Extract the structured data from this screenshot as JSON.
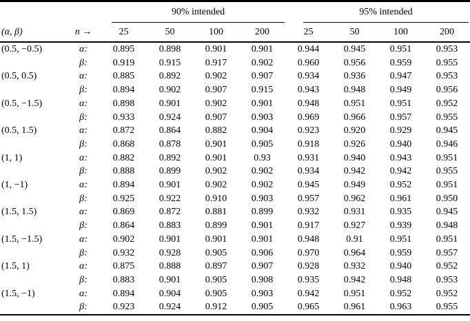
{
  "colors": {
    "text": "#000000",
    "background": "#ffffff",
    "rule": "#000000"
  },
  "table": {
    "groups": [
      {
        "label": "90% intended",
        "columns": [
          "25",
          "50",
          "100",
          "200"
        ]
      },
      {
        "label": "95% intended",
        "columns": [
          "25",
          "50",
          "100",
          "200"
        ]
      }
    ],
    "header": {
      "pair": "(α, β)",
      "n": "n →"
    },
    "row_labels": {
      "alpha": "α:",
      "beta": "β:"
    },
    "rows": [
      {
        "pair": "(0.5, −0.5)",
        "alpha": [
          "0.895",
          "0.898",
          "0.901",
          "0.901",
          "0.944",
          "0.945",
          "0.951",
          "0.953"
        ],
        "beta": [
          "0.919",
          "0.915",
          "0.917",
          "0.902",
          "0.960",
          "0.956",
          "0.959",
          "0.955"
        ]
      },
      {
        "pair": "(0.5, 0.5)",
        "alpha": [
          "0.885",
          "0.892",
          "0.902",
          "0.907",
          "0.934",
          "0.936",
          "0.947",
          "0.953"
        ],
        "beta": [
          "0.894",
          "0.902",
          "0.907",
          "0.915",
          "0.943",
          "0.948",
          "0.949",
          "0.956"
        ]
      },
      {
        "pair": "(0.5, −1.5)",
        "alpha": [
          "0.898",
          "0.901",
          "0.902",
          "0.901",
          "0.948",
          "0.951",
          "0.951",
          "0.952"
        ],
        "beta": [
          "0.933",
          "0.924",
          "0.907",
          "0.903",
          "0.969",
          "0.966",
          "0.957",
          "0.955"
        ]
      },
      {
        "pair": "(0.5, 1.5)",
        "alpha": [
          "0.872",
          "0.864",
          "0.882",
          "0.904",
          "0.923",
          "0.920",
          "0.929",
          "0.945"
        ],
        "beta": [
          "0.868",
          "0.878",
          "0.901",
          "0.905",
          "0.918",
          "0.926",
          "0.940",
          "0.946"
        ]
      },
      {
        "pair": "(1, 1)",
        "alpha": [
          "0.882",
          "0.892",
          "0.901",
          "0.93",
          "0.931",
          "0.940",
          "0.943",
          "0.951"
        ],
        "beta": [
          "0.888",
          "0.899",
          "0.902",
          "0.902",
          "0.934",
          "0.942",
          "0.942",
          "0.955"
        ]
      },
      {
        "pair": "(1, −1)",
        "alpha": [
          "0.894",
          "0.901",
          "0.902",
          "0.902",
          "0.945",
          "0.949",
          "0.952",
          "0.951"
        ],
        "beta": [
          "0.925",
          "0.922",
          "0.910",
          "0.903",
          "0.957",
          "0.962",
          "0.961",
          "0.950"
        ]
      },
      {
        "pair": "(1.5, 1.5)",
        "alpha": [
          "0.869",
          "0.872",
          "0.881",
          "0.899",
          "0.932",
          "0.931",
          "0.935",
          "0.945"
        ],
        "beta": [
          "0.864",
          "0.883",
          "0.899",
          "0.901",
          "0.917",
          "0.927",
          "0.939",
          "0.948"
        ]
      },
      {
        "pair": "(1.5, −1.5)",
        "alpha": [
          "0.902",
          "0.901",
          "0.901",
          "0.901",
          "0.948",
          "0.91",
          "0.951",
          "0.951"
        ],
        "beta": [
          "0.932",
          "0.928",
          "0.905",
          "0.906",
          "0.970",
          "0.964",
          "0.959",
          "0.957"
        ]
      },
      {
        "pair": "(1.5, 1)",
        "alpha": [
          "0.875",
          "0.888",
          "0.897",
          "0.907",
          "0.928",
          "0.932",
          "0.940",
          "0.952"
        ],
        "beta": [
          "0.883",
          "0.901",
          "0.905",
          "0.908",
          "0.935",
          "0.942",
          "0.948",
          "0.953"
        ]
      },
      {
        "pair": "(1.5, −1)",
        "alpha": [
          "0.894",
          "0.904",
          "0.905",
          "0.903",
          "0.942",
          "0.951",
          "0.952",
          "0.952"
        ],
        "beta": [
          "0.923",
          "0.924",
          "0.912",
          "0.905",
          "0.965",
          "0.961",
          "0.963",
          "0.955"
        ]
      }
    ]
  }
}
